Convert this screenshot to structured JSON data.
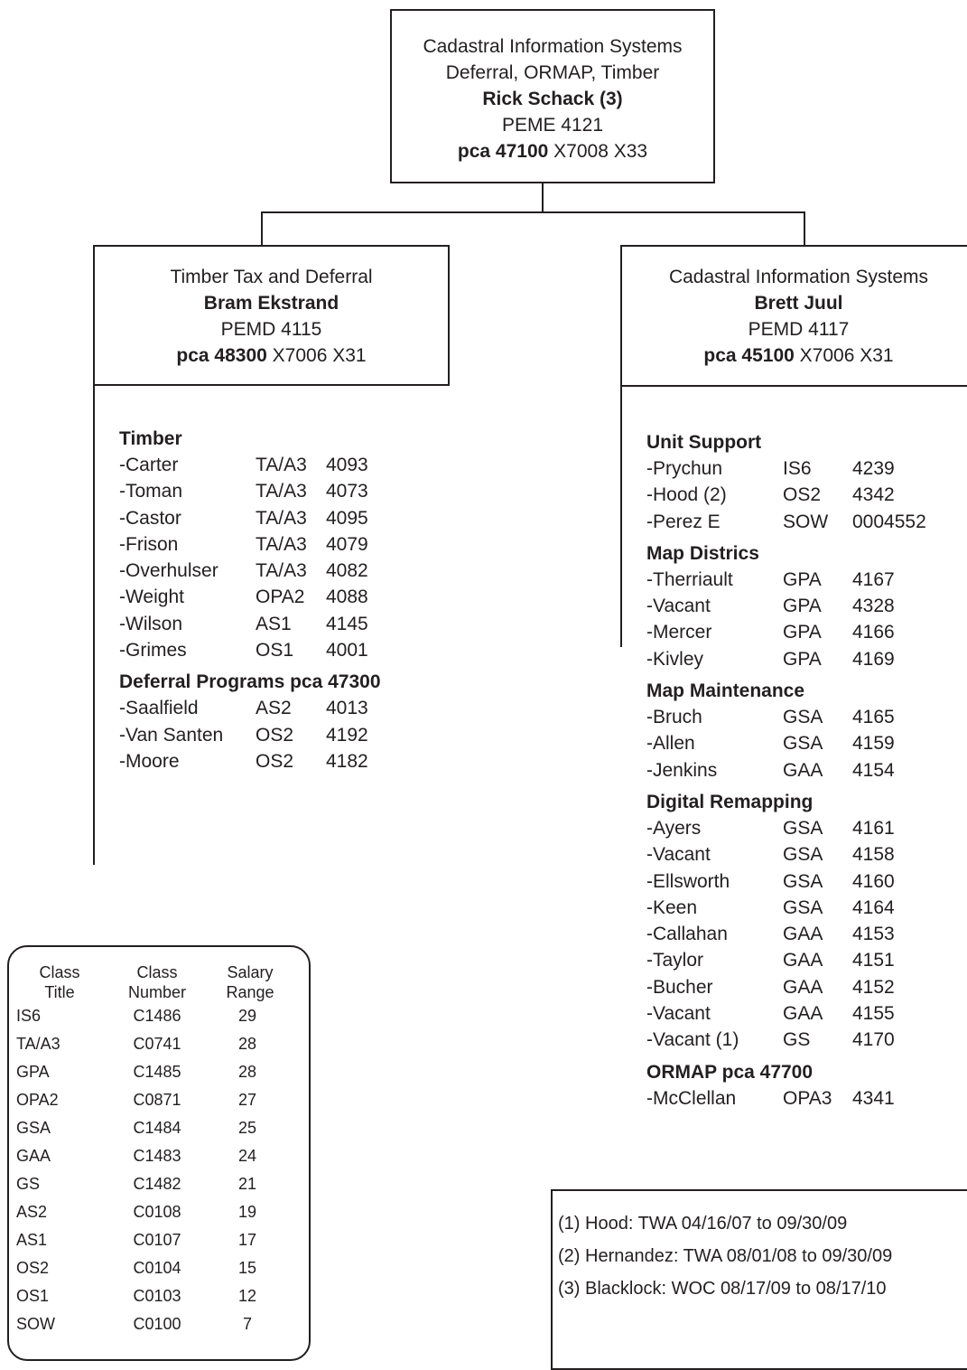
{
  "top_box": {
    "line1": "Cadastral Information Systems",
    "line2": "Deferral, ORMAP, Timber",
    "name": "Rick Schack (3)",
    "position": "PEME 4121",
    "pca_label": "pca 47100",
    "codes": "X7008 X33"
  },
  "left_box": {
    "title": "Timber Tax and Deferral",
    "name": "Bram Ekstrand",
    "position": "PEMD 4115",
    "pca_label": "pca 48300",
    "codes": "X7006 X31"
  },
  "right_box": {
    "title": "Cadastral Information Systems",
    "name": "Brett Juul",
    "position": "PEMD 4117",
    "pca_label": "pca 45100",
    "codes": "X7006 X31"
  },
  "left_sections": [
    {
      "title": "Timber",
      "rows": [
        {
          "name": "-Carter",
          "class": "TA/A3",
          "num": "4093"
        },
        {
          "name": "-Toman",
          "class": "TA/A3",
          "num": "4073"
        },
        {
          "name": "-Castor",
          "class": "TA/A3",
          "num": "4095"
        },
        {
          "name": "-Frison",
          "class": "TA/A3",
          "num": "4079"
        },
        {
          "name": "-Overhulser",
          "class": "TA/A3",
          "num": "4082"
        },
        {
          "name": "-Weight",
          "class": "OPA2",
          "num": "4088"
        },
        {
          "name": "-Wilson",
          "class": "AS1",
          "num": "4145"
        },
        {
          "name": "-Grimes",
          "class": "OS1",
          "num": "4001"
        }
      ]
    },
    {
      "title": "Deferral Programs pca 47300",
      "rows": [
        {
          "name": "-Saalfield",
          "class": "AS2",
          "num": "4013"
        },
        {
          "name": "-Van Santen",
          "class": "OS2",
          "num": "4192"
        },
        {
          "name": "-Moore",
          "class": "OS2",
          "num": "4182"
        }
      ]
    }
  ],
  "right_sections": [
    {
      "title": "Unit Support",
      "rows": [
        {
          "name": "-Prychun",
          "class": "IS6",
          "num": "4239"
        },
        {
          "name": "-Hood (2)",
          "class": "OS2",
          "num": "4342"
        },
        {
          "name": "-Perez E",
          "class": "SOW",
          "num": "0004552"
        }
      ]
    },
    {
      "title": "Map Districs",
      "rows": [
        {
          "name": "-Therriault",
          "class": "GPA",
          "num": "4167"
        },
        {
          "name": "-Vacant",
          "class": "GPA",
          "num": "4328"
        },
        {
          "name": "-Mercer",
          "class": "GPA",
          "num": "4166"
        },
        {
          "name": "-Kivley",
          "class": "GPA",
          "num": "4169"
        }
      ]
    },
    {
      "title": "Map Maintenance",
      "rows": [
        {
          "name": "-Bruch",
          "class": "GSA",
          "num": "4165"
        },
        {
          "name": "-Allen",
          "class": "GSA",
          "num": "4159"
        },
        {
          "name": "-Jenkins",
          "class": "GAA",
          "num": "4154"
        }
      ]
    },
    {
      "title": "Digital Remapping",
      "rows": [
        {
          "name": "-Ayers",
          "class": "GSA",
          "num": "4161"
        },
        {
          "name": "-Vacant",
          "class": "GSA",
          "num": "4158"
        },
        {
          "name": "-Ellsworth",
          "class": "GSA",
          "num": "4160"
        },
        {
          "name": "-Keen",
          "class": "GSA",
          "num": "4164"
        },
        {
          "name": "-Callahan",
          "class": "GAA",
          "num": "4153"
        },
        {
          "name": "-Taylor",
          "class": "GAA",
          "num": "4151"
        },
        {
          "name": "-Bucher",
          "class": "GAA",
          "num": "4152"
        },
        {
          "name": "-Vacant",
          "class": "GAA",
          "num": "4155"
        },
        {
          "name": "-Vacant (1)",
          "class": "GS",
          "num": "4170"
        }
      ]
    },
    {
      "title": "ORMAP pca 47700",
      "rows": [
        {
          "name": "-McClellan",
          "class": "OPA3",
          "num": "4341"
        }
      ]
    }
  ],
  "legend": {
    "headers": [
      {
        "l1": "Class",
        "l2": "Title"
      },
      {
        "l1": "Class",
        "l2": "Number"
      },
      {
        "l1": "Salary",
        "l2": "Range"
      }
    ],
    "rows": [
      {
        "title": "IS6",
        "number": "C1486",
        "range": "29"
      },
      {
        "title": "TA/A3",
        "number": "C0741",
        "range": "28"
      },
      {
        "title": "GPA",
        "number": "C1485",
        "range": "28"
      },
      {
        "title": "OPA2",
        "number": "C0871",
        "range": "27"
      },
      {
        "title": "GSA",
        "number": "C1484",
        "range": "25"
      },
      {
        "title": "GAA",
        "number": "C1483",
        "range": "24"
      },
      {
        "title": "GS",
        "number": "C1482",
        "range": "21"
      },
      {
        "title": "AS2",
        "number": "C0108",
        "range": "19"
      },
      {
        "title": "AS1",
        "number": "C0107",
        "range": "17"
      },
      {
        "title": "OS2",
        "number": "C0104",
        "range": "15"
      },
      {
        "title": "OS1",
        "number": "C0103",
        "range": "12"
      },
      {
        "title": "SOW",
        "number": "C0100",
        "range": "7"
      }
    ]
  },
  "notes": [
    "(1) Hood: TWA 04/16/07 to 09/30/09",
    "(2) Hernandez: TWA 08/01/08 to 09/30/09",
    "(3) Blacklock: WOC 08/17/09 to 08/17/10"
  ]
}
